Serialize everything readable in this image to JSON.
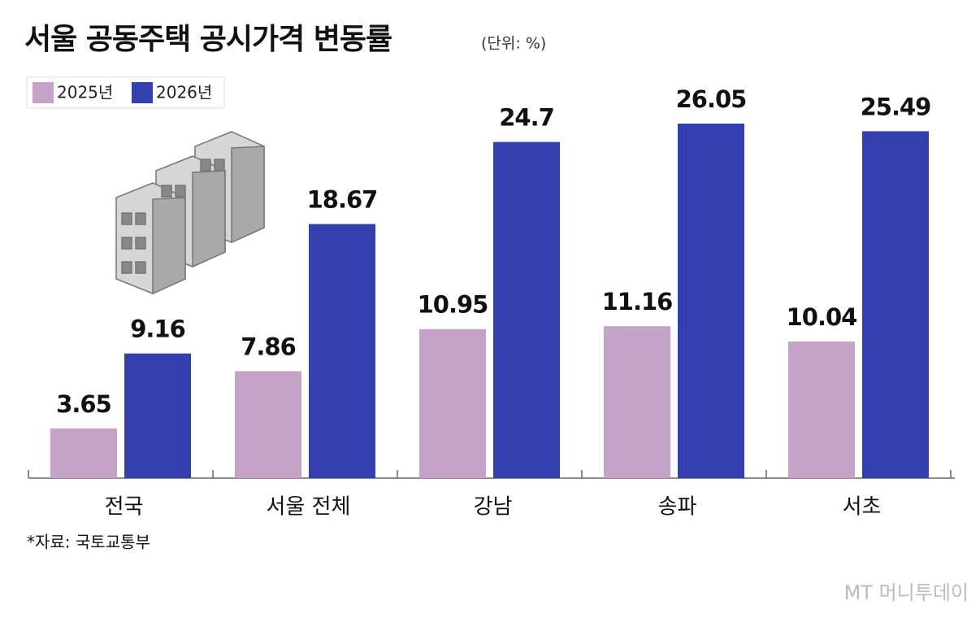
{
  "chart_data": {
    "type": "bar",
    "title": "서울 공동주택 공시가격 변동률",
    "subtitle": "(단위: %)",
    "categories": [
      "전국",
      "서울 전체",
      "강남",
      "송파",
      "서초"
    ],
    "series": [
      {
        "name": "2025년",
        "color": "#c5a3c8",
        "values": [
          3.65,
          7.86,
          10.95,
          11.16,
          10.04
        ]
      },
      {
        "name": "2026년",
        "color": "#3440b0",
        "values": [
          9.16,
          18.67,
          24.7,
          26.05,
          25.49
        ]
      }
    ],
    "source": "*자료: 국토교통부",
    "watermark": "MT 머니투데이"
  }
}
